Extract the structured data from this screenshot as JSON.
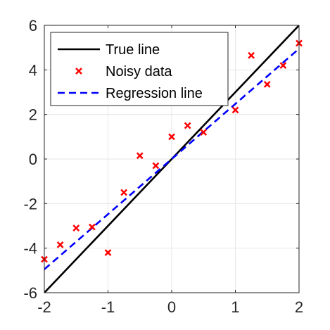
{
  "chart_data": {
    "type": "line",
    "title": "",
    "xlabel": "",
    "ylabel": "",
    "xlim": [
      -2,
      2
    ],
    "ylim": [
      -6,
      6
    ],
    "x_ticks": [
      -2,
      -1,
      0,
      1,
      2
    ],
    "y_ticks": [
      -6,
      -4,
      -2,
      0,
      2,
      4,
      6
    ],
    "x_tick_labels": [
      "-2",
      "-1",
      "0",
      "1",
      "2"
    ],
    "y_tick_labels": [
      "-6",
      "-4",
      "-2",
      "0",
      "2",
      "4",
      "6"
    ],
    "grid": true,
    "legend_position": "top-left",
    "series": [
      {
        "name": "True line",
        "kind": "line",
        "color": "#000000",
        "style": "solid",
        "x": [
          -2,
          2
        ],
        "y": [
          -6,
          6
        ]
      },
      {
        "name": "Noisy data",
        "kind": "scatter",
        "marker": "x",
        "color": "#ff0000",
        "x": [
          -2,
          -1.75,
          -1.5,
          -1.25,
          -1,
          -0.75,
          -0.5,
          -0.25,
          0,
          0.25,
          0.5,
          1,
          1.25,
          1.5,
          1.75,
          2
        ],
        "y": [
          -4.5,
          -3.85,
          -3.1,
          -3.05,
          -4.2,
          -1.5,
          0.15,
          -0.3,
          1.0,
          1.5,
          1.2,
          2.2,
          4.65,
          3.35,
          4.2,
          5.2
        ]
      },
      {
        "name": "Regression line",
        "kind": "line",
        "color": "#0000ff",
        "style": "dashed",
        "x": [
          -2,
          2
        ],
        "y": [
          -4.95,
          4.95
        ]
      }
    ]
  }
}
